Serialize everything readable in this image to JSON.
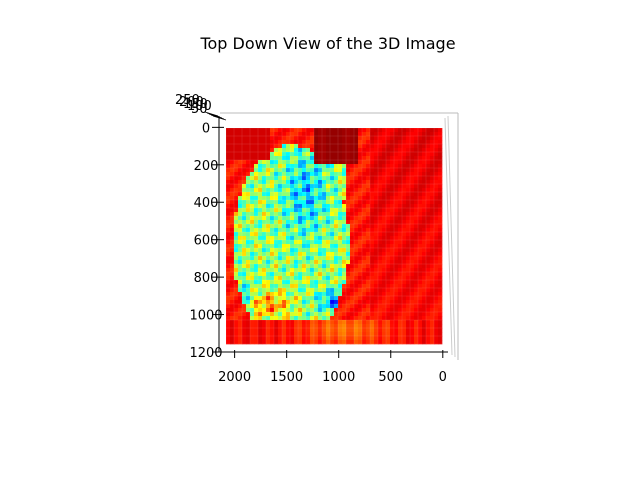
{
  "chart_data": {
    "type": "heatmap",
    "title": "Top Down View of the 3D Image",
    "x_ticks": [
      "2000",
      "1500",
      "1000",
      "500",
      "0"
    ],
    "y_ticks": [
      "0",
      "200",
      "400",
      "600",
      "800",
      "1000",
      "1200"
    ],
    "z_ticks": [
      "250",
      "200",
      "150",
      "100",
      "50"
    ],
    "xlim": [
      2150,
      -50
    ],
    "ylim": [
      1200,
      -50
    ],
    "colormap": "jet",
    "grid": true
  }
}
